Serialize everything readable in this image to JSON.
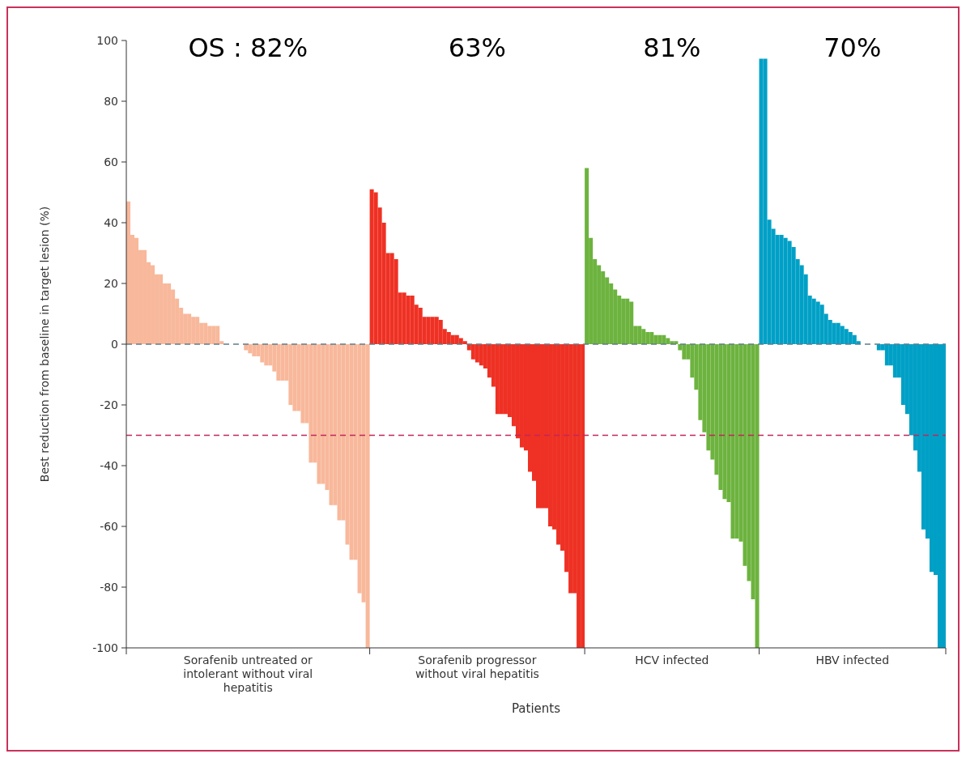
{
  "chart_data": {
    "type": "bar",
    "ylabel": "Best reduction from baseline in target lesion (%)",
    "xlabel": "Patients",
    "categories": [
      null,
      null,
      null,
      null,
      null,
      null,
      null,
      null,
      null,
      null,
      null,
      null,
      null,
      null,
      null,
      null,
      null,
      null,
      null,
      null,
      null,
      null,
      null,
      null,
      null,
      null,
      null,
      null,
      null,
      null,
      null,
      null,
      null,
      null,
      null,
      null,
      null,
      null,
      null,
      null,
      null,
      null,
      null,
      null,
      null,
      null,
      null,
      null,
      null,
      null,
      null,
      null,
      null,
      null,
      null,
      null,
      null,
      null,
      null,
      null,
      null,
      null,
      null,
      null,
      null,
      null,
      null,
      null,
      null,
      null,
      null,
      null,
      null,
      null,
      null,
      null,
      null,
      null,
      null,
      null,
      null,
      null,
      null,
      null,
      null,
      null,
      null,
      null,
      null,
      null,
      null,
      null,
      null,
      null,
      null,
      null,
      null,
      null,
      null,
      null,
      null,
      null,
      null,
      null,
      null,
      null,
      null,
      null,
      null,
      null,
      null,
      null,
      null,
      null,
      null,
      null,
      null,
      null,
      null,
      null,
      null,
      null,
      null,
      null,
      null,
      null,
      null,
      null,
      null,
      null,
      null,
      null,
      null,
      null,
      null,
      null,
      null,
      null,
      null,
      null,
      null,
      null,
      null,
      null,
      null,
      null,
      null,
      null,
      null,
      null,
      null,
      null,
      null,
      null,
      null,
      null,
      null,
      null,
      null,
      null,
      null,
      null,
      null,
      null,
      null,
      null,
      null,
      null,
      null,
      null,
      null,
      null,
      null,
      null,
      null,
      null,
      null,
      null,
      null,
      null,
      null,
      null,
      null,
      null,
      null,
      null,
      null,
      null,
      null,
      null,
      null,
      null,
      null,
      null,
      null,
      null,
      null,
      null,
      null,
      null,
      null,
      null
    ],
    "series": [
      {
        "color": "#f8b89b",
        "values": [
          47,
          36,
          35,
          31,
          31,
          27,
          26,
          23,
          23,
          20,
          20,
          18,
          15,
          12,
          10,
          10,
          9,
          9,
          7,
          7,
          6,
          6,
          6,
          1,
          0,
          0,
          0,
          0,
          0,
          -2,
          -3,
          -4,
          -4,
          -6,
          -7,
          -7,
          -9,
          -12,
          -12,
          -12,
          -20,
          -22,
          -22,
          -26,
          -26,
          -39,
          -39,
          -46,
          -46,
          -48,
          -53,
          -53,
          -58,
          -58,
          -66,
          -71,
          -71,
          -82,
          -85,
          -100,
          null,
          null,
          null,
          null,
          null,
          null,
          null,
          null,
          null,
          null,
          null,
          null,
          null,
          null,
          null,
          null,
          null,
          null,
          null,
          null,
          null,
          null,
          null,
          null,
          null,
          null,
          null,
          null,
          null,
          null,
          null,
          null,
          null,
          null,
          null,
          null,
          null,
          null,
          null,
          null,
          null,
          null,
          null,
          null,
          null,
          null,
          null,
          null,
          null,
          null,
          null,
          null,
          null,
          null,
          null,
          null,
          null,
          null,
          null,
          null,
          null,
          null,
          null,
          null,
          null,
          null,
          null,
          null,
          null,
          null,
          null,
          null,
          null,
          null,
          null,
          null,
          null,
          null,
          null,
          null,
          null,
          null,
          null,
          null,
          null,
          null,
          null,
          null,
          null,
          null,
          null,
          null,
          null,
          null,
          null,
          null,
          null,
          null,
          null,
          null,
          null,
          null,
          null,
          null,
          null,
          null,
          null,
          null,
          null,
          null,
          null,
          null,
          null,
          null,
          null,
          null,
          null,
          null,
          null,
          null,
          null,
          null,
          null,
          null,
          null,
          null,
          null,
          null,
          null,
          null,
          null,
          null,
          null,
          null,
          null,
          null,
          null,
          null,
          null,
          null,
          null,
          null
        ]
      },
      {
        "color": "#ee3124",
        "values": [
          null,
          null,
          null,
          null,
          null,
          null,
          null,
          null,
          null,
          null,
          null,
          null,
          null,
          null,
          null,
          null,
          null,
          null,
          null,
          null,
          null,
          null,
          null,
          null,
          null,
          null,
          null,
          null,
          null,
          null,
          null,
          null,
          null,
          null,
          null,
          null,
          null,
          null,
          null,
          null,
          null,
          null,
          null,
          null,
          null,
          null,
          null,
          null,
          null,
          null,
          null,
          null,
          null,
          null,
          null,
          null,
          null,
          null,
          null,
          null,
          51,
          50,
          45,
          40,
          30,
          30,
          28,
          17,
          17,
          16,
          16,
          13,
          12,
          9,
          9,
          9,
          9,
          8,
          5,
          4,
          3,
          3,
          2,
          1,
          -2,
          -5,
          -6,
          -7,
          -8,
          -11,
          -14,
          -23,
          -23,
          -23,
          -24,
          -27,
          -31,
          -34,
          -35,
          -42,
          -45,
          -54,
          -54,
          -54,
          -60,
          -61,
          -66,
          -68,
          -75,
          -82,
          -82,
          -100,
          -100,
          null,
          null,
          null,
          null,
          null,
          null,
          null,
          null,
          null,
          null,
          null,
          null,
          null,
          null,
          null,
          null,
          null,
          null,
          null,
          null,
          null,
          null,
          null,
          null,
          null,
          null,
          null,
          null,
          null,
          null,
          null,
          null,
          null,
          null,
          null,
          null,
          null,
          null,
          null,
          null,
          null,
          null,
          null,
          null,
          null,
          null,
          null,
          null,
          null,
          null,
          null,
          null,
          null,
          null,
          null,
          null,
          null,
          null,
          null,
          null,
          null,
          null,
          null,
          null,
          null,
          null,
          null,
          null,
          null,
          null,
          null,
          null,
          null,
          null,
          null,
          null,
          null,
          null,
          null,
          null,
          null,
          null,
          null,
          null,
          null,
          null,
          null,
          null,
          null
        ]
      },
      {
        "color": "#6db33f",
        "values": [
          null,
          null,
          null,
          null,
          null,
          null,
          null,
          null,
          null,
          null,
          null,
          null,
          null,
          null,
          null,
          null,
          null,
          null,
          null,
          null,
          null,
          null,
          null,
          null,
          null,
          null,
          null,
          null,
          null,
          null,
          null,
          null,
          null,
          null,
          null,
          null,
          null,
          null,
          null,
          null,
          null,
          null,
          null,
          null,
          null,
          null,
          null,
          null,
          null,
          null,
          null,
          null,
          null,
          null,
          null,
          null,
          null,
          null,
          null,
          null,
          null,
          null,
          null,
          null,
          null,
          null,
          null,
          null,
          null,
          null,
          null,
          null,
          null,
          null,
          null,
          null,
          null,
          null,
          null,
          null,
          null,
          null,
          null,
          null,
          null,
          null,
          null,
          null,
          null,
          null,
          null,
          null,
          null,
          null,
          null,
          null,
          null,
          null,
          null,
          null,
          null,
          null,
          null,
          null,
          null,
          null,
          null,
          null,
          null,
          null,
          null,
          null,
          null,
          58,
          35,
          28,
          26,
          24,
          22,
          20,
          18,
          16,
          15,
          15,
          14,
          6,
          6,
          5,
          4,
          4,
          3,
          3,
          3,
          2,
          1,
          1,
          -2,
          -5,
          -5,
          -11,
          -15,
          -25,
          -29,
          -35,
          -38,
          -43,
          -48,
          -51,
          -52,
          -64,
          -64,
          -65,
          -73,
          -78,
          -84,
          -100,
          null,
          null,
          null,
          null,
          null,
          null,
          null,
          null,
          null,
          null,
          null,
          null,
          null,
          null,
          null,
          null,
          null,
          null,
          null,
          null,
          null,
          null,
          null,
          null,
          null,
          null,
          null,
          null,
          null,
          null,
          null,
          null,
          null,
          null,
          null,
          null,
          null,
          null,
          null,
          null,
          null,
          null,
          null,
          null,
          null,
          null
        ]
      },
      {
        "color": "#00a0c6",
        "values": [
          null,
          null,
          null,
          null,
          null,
          null,
          null,
          null,
          null,
          null,
          null,
          null,
          null,
          null,
          null,
          null,
          null,
          null,
          null,
          null,
          null,
          null,
          null,
          null,
          null,
          null,
          null,
          null,
          null,
          null,
          null,
          null,
          null,
          null,
          null,
          null,
          null,
          null,
          null,
          null,
          null,
          null,
          null,
          null,
          null,
          null,
          null,
          null,
          null,
          null,
          null,
          null,
          null,
          null,
          null,
          null,
          null,
          null,
          null,
          null,
          null,
          null,
          null,
          null,
          null,
          null,
          null,
          null,
          null,
          null,
          null,
          null,
          null,
          null,
          null,
          null,
          null,
          null,
          null,
          null,
          null,
          null,
          null,
          null,
          null,
          null,
          null,
          null,
          null,
          null,
          null,
          null,
          null,
          null,
          null,
          null,
          null,
          null,
          null,
          null,
          null,
          null,
          null,
          null,
          null,
          null,
          null,
          null,
          null,
          null,
          null,
          null,
          null,
          null,
          null,
          null,
          null,
          null,
          null,
          null,
          null,
          null,
          null,
          null,
          null,
          null,
          null,
          null,
          null,
          null,
          null,
          null,
          null,
          null,
          null,
          null,
          null,
          null,
          null,
          null,
          null,
          null,
          null,
          null,
          null,
          null,
          null,
          null,
          null,
          null,
          null,
          null,
          null,
          null,
          null,
          null,
          94,
          94,
          41,
          38,
          36,
          36,
          35,
          34,
          32,
          28,
          26,
          23,
          16,
          15,
          14,
          13,
          10,
          8,
          7,
          7,
          6,
          5,
          4,
          3,
          1,
          0,
          0,
          0,
          0,
          -2,
          -2,
          -7,
          -7,
          -11,
          -11,
          -20,
          -23,
          -30,
          -35,
          -42,
          -61,
          -64,
          -75,
          -76,
          -100,
          -100
        ]
      }
    ],
    "ylim": [
      -100,
      100
    ],
    "yticks": [
      -100,
      -80,
      -60,
      -40,
      -20,
      0,
      20,
      40,
      60,
      80,
      100
    ],
    "ref_lines": [
      {
        "axis": "y",
        "value": 0,
        "color": "#5f7d8c",
        "line_style": "dashed"
      },
      {
        "axis": "y",
        "value": -30,
        "color": "#c2255c",
        "line_style": "dashed"
      }
    ],
    "annotations": [
      "OS : 82%",
      "63%",
      "81%",
      "70%",
      "Sorafenib untreated or intolerant without viral hepatitis",
      "Sorafenib progressor without viral hepatitis",
      "HCV infected",
      "HBV infected"
    ]
  }
}
